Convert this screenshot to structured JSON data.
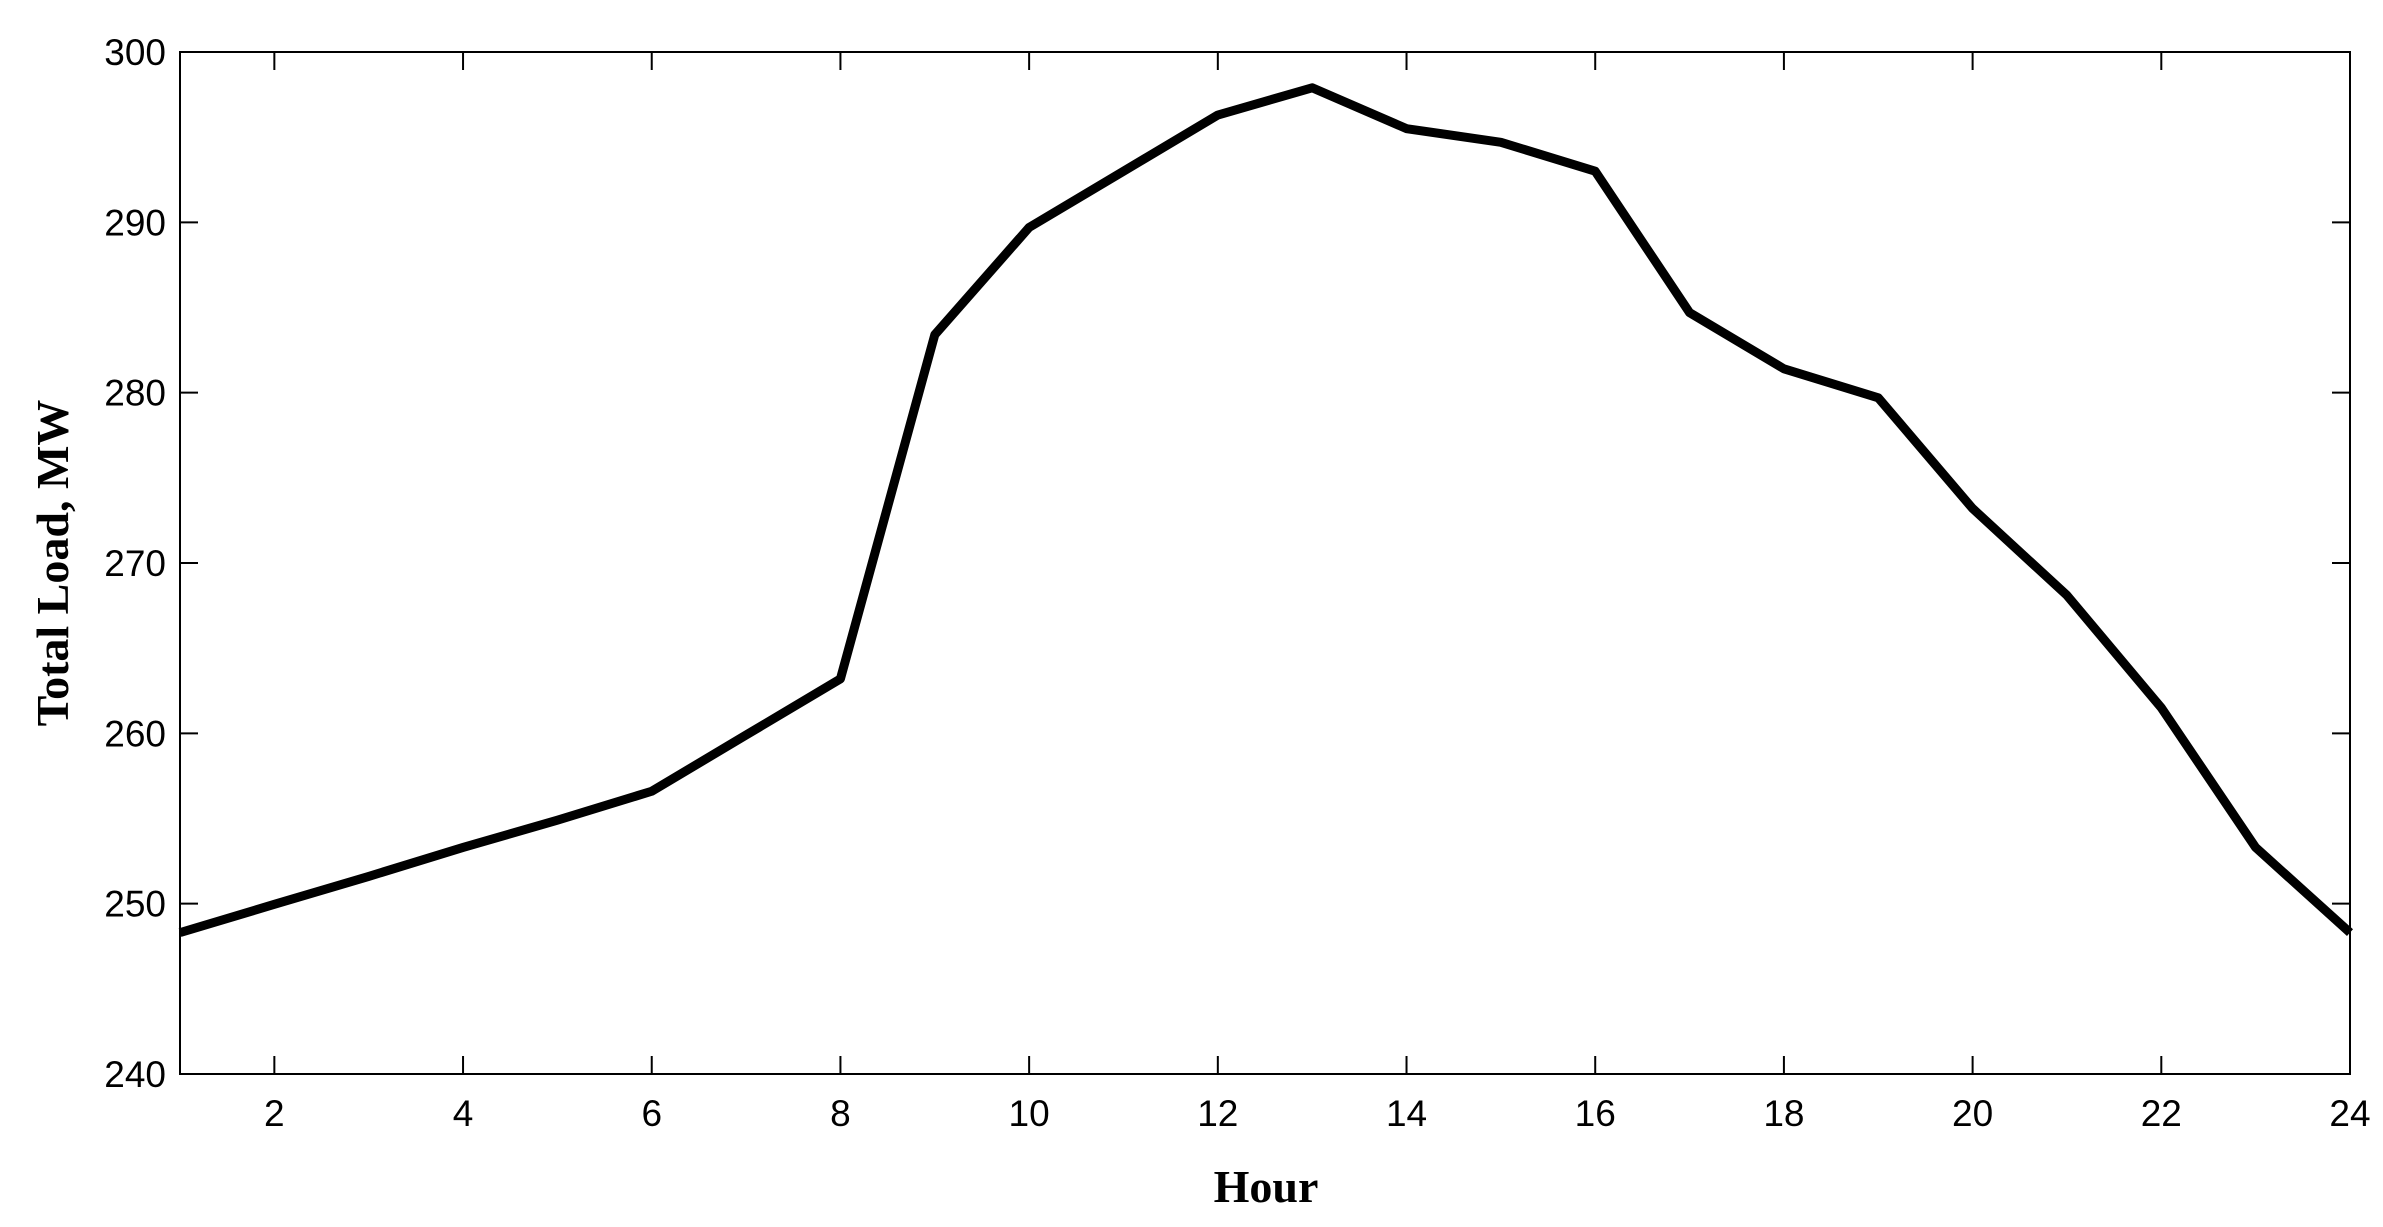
{
  "chart_data": {
    "type": "line",
    "xlabel": "Hour",
    "ylabel": "Total Load, MW",
    "x": [
      1,
      2,
      3,
      4,
      5,
      6,
      7,
      8,
      9,
      10,
      11,
      12,
      13,
      14,
      15,
      16,
      17,
      18,
      19,
      20,
      21,
      22,
      23,
      24
    ],
    "series": [
      {
        "color": "#000000",
        "values": [
          248.3,
          249.96,
          251.6,
          253.3,
          254.9,
          256.6,
          259.9,
          263.2,
          283.4,
          289.7,
          293.0,
          296.3,
          297.9,
          295.5,
          294.7,
          293.0,
          284.7,
          281.4,
          279.7,
          273.2,
          268.1,
          261.5,
          253.3,
          248.3
        ]
      }
    ],
    "xlim": [
      1,
      24
    ],
    "xticks": [
      2,
      4,
      6,
      8,
      10,
      12,
      14,
      16,
      18,
      20,
      22,
      24
    ],
    "ylim": [
      240,
      300
    ],
    "yticks": [
      240,
      250,
      260,
      270,
      280,
      290,
      300
    ]
  }
}
